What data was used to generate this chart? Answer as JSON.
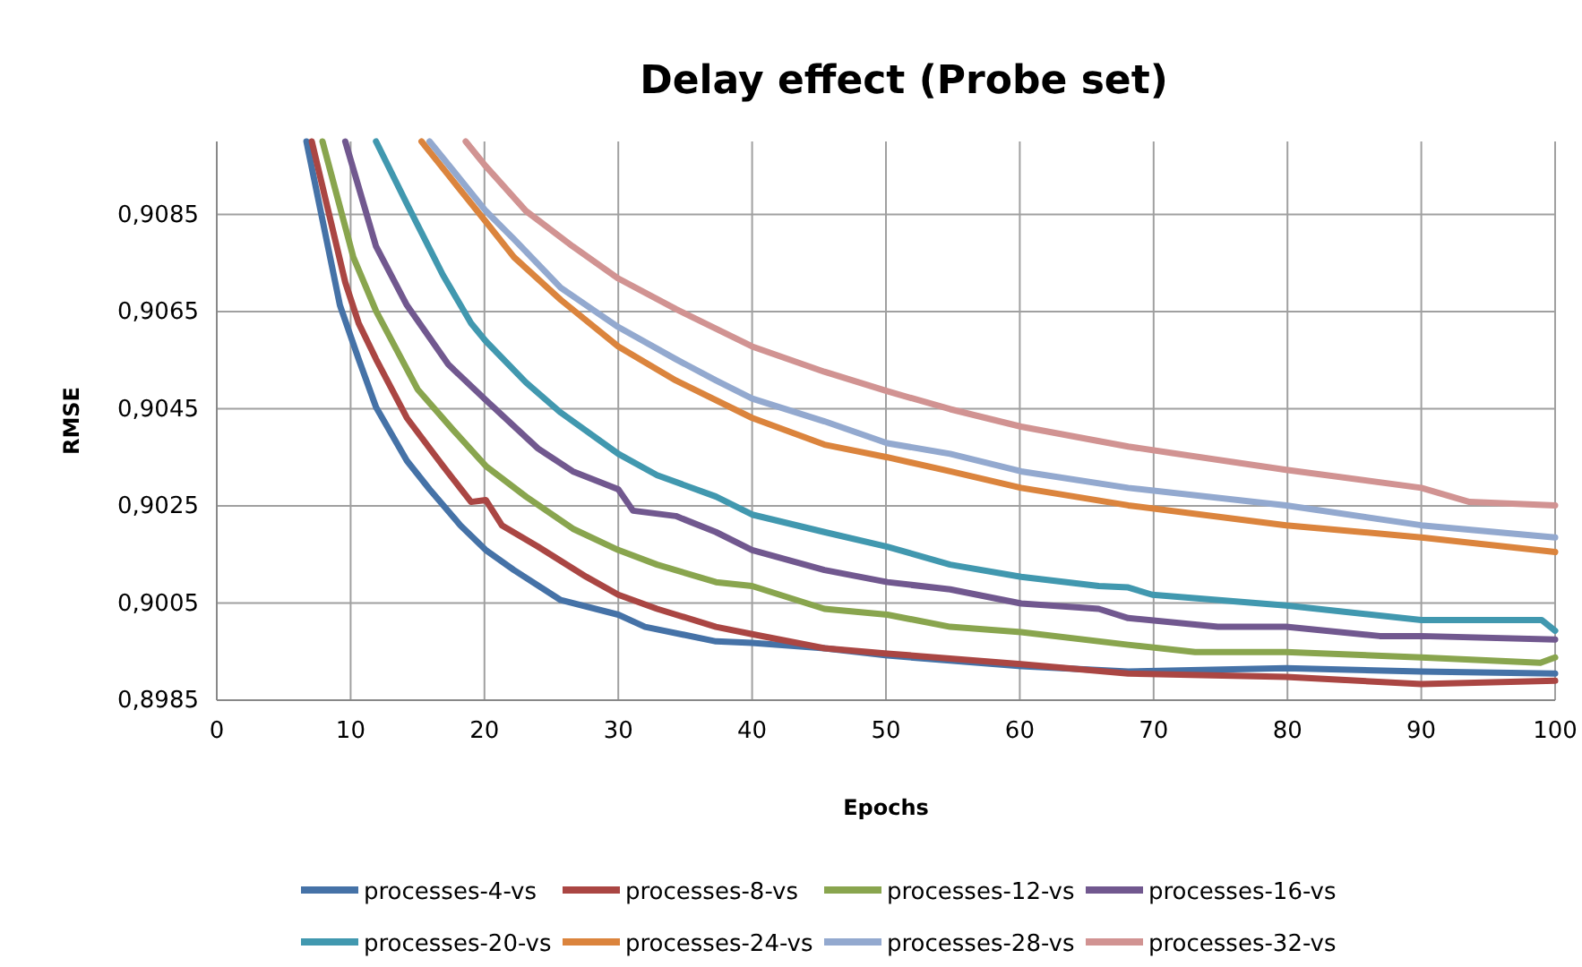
{
  "chart_data": {
    "type": "line",
    "title": "Delay effect (Probe set)",
    "xlabel": "Epochs",
    "ylabel": "RMSE",
    "xlim": [
      0,
      100
    ],
    "xticks": [
      0,
      10,
      20,
      30,
      40,
      50,
      60,
      70,
      80,
      90,
      100
    ],
    "ylim": [
      0.8985,
      0.91
    ],
    "yticks": [
      {
        "value": 0.8985,
        "label": "0,8985"
      },
      {
        "value": 0.9005,
        "label": "0,9005"
      },
      {
        "value": 0.9025,
        "label": "0,9025"
      },
      {
        "value": 0.9045,
        "label": "0,9045"
      },
      {
        "value": 0.9065,
        "label": "0,9065"
      },
      {
        "value": 0.9085,
        "label": "0,9085"
      }
    ],
    "grid": true,
    "legend": "bottom",
    "marker": "none",
    "line_style": "solid",
    "series": [
      {
        "name": "processes-4-vs",
        "color": "#4572a7",
        "x": [
          6.7,
          9.2,
          10.6,
          11.9,
          14.2,
          15.9,
          18.2,
          20.1,
          22.2,
          25.7,
          30,
          32,
          37.3,
          40,
          45.4,
          50.1,
          60.1,
          68.1,
          79.9,
          90,
          100
        ],
        "values": [
          0.91,
          0.90663,
          0.90552,
          0.90453,
          0.90343,
          0.90284,
          0.9021,
          0.90159,
          0.90118,
          0.90056,
          0.90026,
          0.90001,
          0.89971,
          0.89968,
          0.89957,
          0.89942,
          0.8992,
          0.89909,
          0.89916,
          0.89909,
          0.89905
        ]
      },
      {
        "name": "processes-8-vs",
        "color": "#aa4643",
        "x": [
          7.1,
          9.6,
          10.6,
          11.9,
          14.2,
          16.9,
          19,
          20.1,
          21.3,
          24,
          27.6,
          30,
          32.9,
          37.3,
          40,
          45.4,
          50.1,
          60.1,
          68.1,
          79.9,
          90,
          100
        ],
        "values": [
          0.91,
          0.9071,
          0.90626,
          0.90552,
          0.90431,
          0.90332,
          0.90258,
          0.90262,
          0.9021,
          0.90166,
          0.90104,
          0.90067,
          0.90038,
          0.90001,
          0.89986,
          0.89957,
          0.89946,
          0.89924,
          0.89905,
          0.89898,
          0.89883,
          0.8989
        ]
      },
      {
        "name": "processes-12-vs",
        "color": "#89a54e",
        "x": [
          7.9,
          10.2,
          11.9,
          15,
          17.7,
          20.1,
          23.1,
          26.6,
          30,
          32.9,
          37.3,
          40,
          45.4,
          50.1,
          54.8,
          60.1,
          68.1,
          73.1,
          79.9,
          90,
          98.9,
          100
        ],
        "values": [
          0.91,
          0.90762,
          0.90651,
          0.9049,
          0.90405,
          0.90332,
          0.90269,
          0.90203,
          0.90159,
          0.90129,
          0.90093,
          0.90085,
          0.90038,
          0.90026,
          0.90001,
          0.8999,
          0.89964,
          0.89949,
          0.89949,
          0.89938,
          0.89927,
          0.89938
        ]
      },
      {
        "name": "processes-16-vs",
        "color": "#71588f",
        "x": [
          9.6,
          11.9,
          14.2,
          17.3,
          20.1,
          24,
          26.6,
          30,
          31.1,
          34.3,
          37.3,
          40,
          45.4,
          50.1,
          54.8,
          60.1,
          65.9,
          68.1,
          74.8,
          79.9,
          86.9,
          90,
          100
        ],
        "values": [
          0.91,
          0.90784,
          0.90663,
          0.90541,
          0.90468,
          0.90368,
          0.90321,
          0.90284,
          0.9024,
          0.90229,
          0.90196,
          0.90159,
          0.90118,
          0.90093,
          0.90078,
          0.90049,
          0.90038,
          0.90019,
          0.90001,
          0.90001,
          0.89982,
          0.89982,
          0.89975
        ]
      },
      {
        "name": "processes-20-vs",
        "color": "#4198af",
        "x": [
          11.9,
          14.2,
          16.9,
          19,
          20.1,
          23.1,
          25.7,
          30,
          32.9,
          37.3,
          40,
          45.4,
          50.1,
          54.8,
          60.1,
          65.9,
          68.1,
          69.9,
          79.9,
          90,
          99,
          100
        ],
        "values": [
          0.91,
          0.90872,
          0.90725,
          0.90626,
          0.90589,
          0.90504,
          0.90442,
          0.90357,
          0.90313,
          0.90269,
          0.90232,
          0.90196,
          0.90166,
          0.90129,
          0.90104,
          0.90085,
          0.90082,
          0.90067,
          0.90045,
          0.90015,
          0.90015,
          0.89993
        ]
      },
      {
        "name": "processes-24-vs",
        "color": "#db843d",
        "x": [
          15.3,
          17.3,
          20.1,
          22.2,
          25.7,
          30,
          34.3,
          40,
          45.4,
          50.1,
          54.8,
          60.1,
          68.1,
          79.9,
          90,
          100
        ],
        "values": [
          0.91,
          0.90931,
          0.90835,
          0.90762,
          0.90674,
          0.90578,
          0.90508,
          0.90431,
          0.90376,
          0.9035,
          0.90321,
          0.90287,
          0.90251,
          0.9021,
          0.90185,
          0.90155
        ]
      },
      {
        "name": "processes-28-vs",
        "color": "#93a9cf",
        "x": [
          15.9,
          20.1,
          22.2,
          25.7,
          30,
          34.3,
          37.3,
          40,
          45.4,
          50.1,
          54.8,
          60.1,
          68.1,
          79.9,
          90,
          100
        ],
        "values": [
          0.91,
          0.90857,
          0.90799,
          0.90699,
          0.90618,
          0.90552,
          0.90508,
          0.90471,
          0.90424,
          0.90379,
          0.90357,
          0.90321,
          0.90287,
          0.90251,
          0.9021,
          0.90185
        ]
      },
      {
        "name": "processes-32-vs",
        "color": "#d19392",
        "x": [
          18.6,
          20.1,
          23.1,
          26.6,
          30,
          34.3,
          40,
          45.4,
          50.1,
          54.8,
          60.1,
          68.1,
          79.9,
          90,
          93.6,
          100
        ],
        "values": [
          0.91,
          0.90949,
          0.90857,
          0.90784,
          0.90718,
          0.90655,
          0.90578,
          0.90526,
          0.90486,
          0.90449,
          0.90413,
          0.90372,
          0.90324,
          0.90287,
          0.90258,
          0.90251
        ]
      }
    ]
  }
}
